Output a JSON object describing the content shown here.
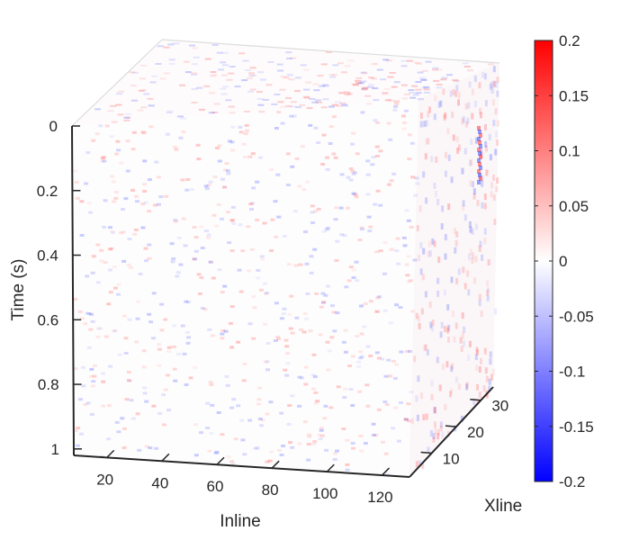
{
  "chart_data": {
    "type": "heatmap",
    "subtype": "3d-seismic-cube",
    "colormap": [
      "#0000ff",
      "#ffffff",
      "#ff0000"
    ],
    "x_axis": {
      "label": "Inline",
      "ticks": [
        20,
        40,
        60,
        80,
        100,
        120
      ],
      "range": [
        8,
        130
      ]
    },
    "y_axis": {
      "label": "Xline",
      "ticks": [
        10,
        20,
        30
      ],
      "range": [
        1,
        35
      ]
    },
    "z_axis": {
      "label": "Time (s)",
      "ticks": [
        "0",
        "0.2",
        "0.4",
        "0.6",
        "0.8",
        "1"
      ],
      "range": [
        0,
        1.02
      ],
      "reversed": true
    },
    "colorbar": {
      "range": [
        -0.2,
        0.2
      ],
      "ticks": [
        "0.2",
        "0.15",
        "0.1",
        "0.05",
        "0",
        "-0.05",
        "-0.1",
        "-0.15",
        "-0.2"
      ]
    },
    "grid": false
  }
}
